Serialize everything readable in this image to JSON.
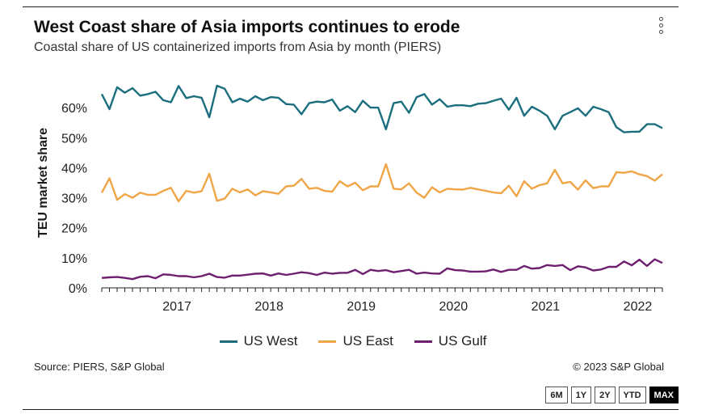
{
  "header": {
    "title": "West Coast share of Asia imports continues to erode",
    "subtitle": "Coastal share of US containerized imports from Asia by month (PIERS)"
  },
  "footer": {
    "source": "Source: PIERS, S&P Global",
    "copyright": "© 2023 S&P Global"
  },
  "range_buttons": [
    {
      "label": "6M",
      "active": false
    },
    {
      "label": "1Y",
      "active": false
    },
    {
      "label": "2Y",
      "active": false
    },
    {
      "label": "YTD",
      "active": false
    },
    {
      "label": "MAX",
      "active": true
    }
  ],
  "icons": {
    "menu": "more-vertical-icon"
  },
  "chart_data": {
    "type": "line",
    "title": "West Coast share of Asia imports continues to erode",
    "subtitle": "Coastal share of US containerized imports from Asia by month (PIERS)",
    "ylabel": "TEU market share",
    "xlabel": "",
    "ylim": [
      0,
      70
    ],
    "yticks": [
      0,
      10,
      20,
      30,
      40,
      50,
      60
    ],
    "ytick_labels": [
      "0%",
      "10%",
      "20%",
      "30%",
      "40%",
      "50%",
      "60%"
    ],
    "xtick_labels": [
      "2017",
      "2018",
      "2019",
      "2020",
      "2021",
      "2022"
    ],
    "x_start": "2016-08",
    "grid": false,
    "legend_position": "bottom",
    "x": [
      "2016-08",
      "2016-09",
      "2016-10",
      "2016-11",
      "2016-12",
      "2017-01",
      "2017-02",
      "2017-03",
      "2017-04",
      "2017-05",
      "2017-06",
      "2017-07",
      "2017-08",
      "2017-09",
      "2017-10",
      "2017-11",
      "2017-12",
      "2018-01",
      "2018-02",
      "2018-03",
      "2018-04",
      "2018-05",
      "2018-06",
      "2018-07",
      "2018-08",
      "2018-09",
      "2018-10",
      "2018-11",
      "2018-12",
      "2019-01",
      "2019-02",
      "2019-03",
      "2019-04",
      "2019-05",
      "2019-06",
      "2019-07",
      "2019-08",
      "2019-09",
      "2019-10",
      "2019-11",
      "2019-12",
      "2020-01",
      "2020-02",
      "2020-03",
      "2020-04",
      "2020-05",
      "2020-06",
      "2020-07",
      "2020-08",
      "2020-09",
      "2020-10",
      "2020-11",
      "2020-12",
      "2021-01",
      "2021-02",
      "2021-03",
      "2021-04",
      "2021-05",
      "2021-06",
      "2021-07",
      "2021-08",
      "2021-09",
      "2021-10",
      "2021-11",
      "2021-12",
      "2022-01",
      "2022-02",
      "2022-03",
      "2022-04",
      "2022-05",
      "2022-06",
      "2022-07",
      "2022-08",
      "2022-09"
    ],
    "series": [
      {
        "name": "US West",
        "color": "#1a6e7e",
        "values": [
          64.5,
          59.5,
          66.8,
          65.0,
          66.5,
          64.0,
          64.5,
          65.3,
          62.5,
          61.8,
          67.2,
          63.2,
          63.8,
          63.3,
          56.8,
          67.3,
          66.3,
          61.8,
          63.0,
          62.0,
          63.8,
          62.5,
          63.5,
          63.3,
          61.2,
          61.0,
          57.8,
          61.5,
          62.0,
          61.8,
          62.7,
          59.0,
          60.5,
          58.5,
          62.3,
          60.0,
          60.0,
          52.8,
          61.5,
          62.0,
          58.3,
          63.5,
          64.5,
          61.0,
          62.8,
          60.3,
          60.8,
          60.8,
          60.5,
          61.3,
          61.5,
          62.3,
          63.0,
          59.3,
          63.3,
          57.3,
          60.3,
          59.0,
          57.3,
          52.8,
          57.3,
          58.5,
          59.8,
          57.3,
          60.3,
          59.5,
          58.5,
          53.5,
          51.8,
          52.0,
          52.0,
          54.5,
          54.5,
          53.2
        ]
      },
      {
        "name": "US East",
        "color": "#f0a647",
        "values": [
          31.7,
          36.5,
          29.3,
          31.2,
          30.0,
          31.7,
          31.0,
          31.0,
          32.3,
          33.3,
          28.8,
          32.3,
          31.7,
          32.2,
          38.0,
          29.0,
          29.7,
          33.0,
          31.8,
          32.8,
          30.8,
          32.2,
          31.8,
          31.3,
          33.8,
          34.0,
          36.3,
          33.0,
          33.3,
          32.3,
          32.0,
          35.5,
          33.8,
          35.0,
          32.5,
          33.8,
          33.8,
          41.2,
          33.0,
          32.8,
          34.8,
          31.7,
          30.0,
          33.5,
          31.8,
          33.0,
          32.8,
          32.7,
          33.3,
          32.8,
          32.3,
          31.8,
          31.5,
          34.0,
          30.5,
          35.5,
          33.0,
          34.2,
          34.8,
          39.3,
          34.8,
          35.3,
          32.7,
          35.8,
          33.2,
          33.8,
          33.8,
          38.5,
          38.3,
          38.8,
          37.8,
          37.2,
          35.7,
          37.8
        ]
      },
      {
        "name": "US Gulf",
        "color": "#6f1f6f",
        "values": [
          3.3,
          3.5,
          3.6,
          3.3,
          2.9,
          3.7,
          3.9,
          3.2,
          4.5,
          4.3,
          3.9,
          3.9,
          3.5,
          3.9,
          4.7,
          3.6,
          3.4,
          4.1,
          4.1,
          4.4,
          4.7,
          4.8,
          4.1,
          4.8,
          4.3,
          4.7,
          5.2,
          4.9,
          4.3,
          5.1,
          4.7,
          5.0,
          5.0,
          6.0,
          4.6,
          6.0,
          5.6,
          5.9,
          5.2,
          5.6,
          6.0,
          4.7,
          5.1,
          4.8,
          4.7,
          6.5,
          5.9,
          5.8,
          5.4,
          5.4,
          5.5,
          6.1,
          5.3,
          6.0,
          6.0,
          7.3,
          6.4,
          6.6,
          7.6,
          7.3,
          7.6,
          5.9,
          7.2,
          6.8,
          5.8,
          6.1,
          7.0,
          7.0,
          8.8,
          7.5,
          9.4,
          7.3,
          9.5,
          8.3
        ]
      }
    ]
  }
}
